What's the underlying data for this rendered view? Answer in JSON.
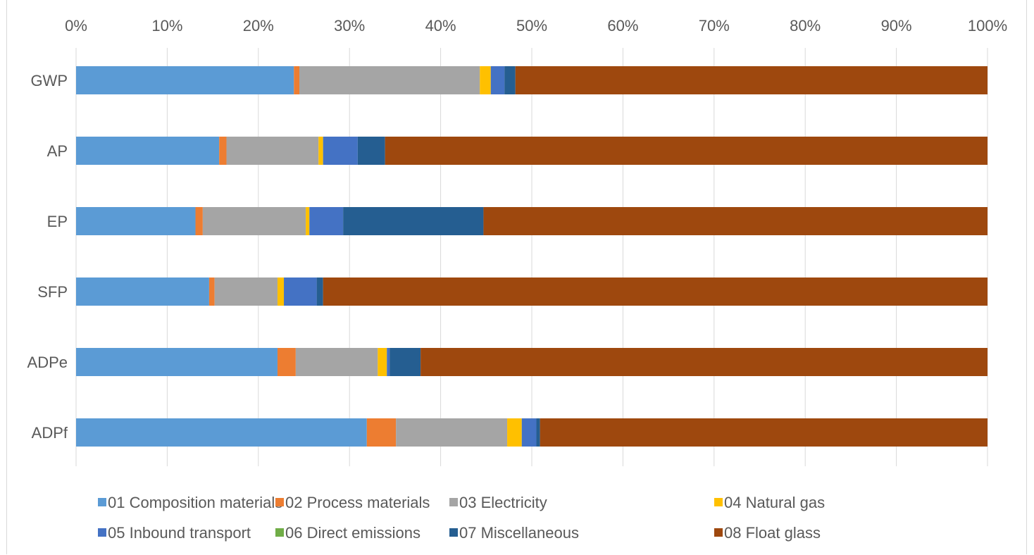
{
  "chart_data": {
    "type": "bar",
    "orientation": "horizontal",
    "stacked": "percent",
    "title": "",
    "xlabel": "",
    "ylabel": "",
    "xlim": [
      0,
      100
    ],
    "x_ticks": [
      "0%",
      "10%",
      "20%",
      "30%",
      "40%",
      "50%",
      "60%",
      "70%",
      "80%",
      "90%",
      "100%"
    ],
    "x_axis_position": "top",
    "grid": true,
    "legend_position": "bottom",
    "categories": [
      "GWP",
      "AP",
      "EP",
      "SFP",
      "ADPe",
      "ADPf"
    ],
    "series": [
      {
        "name": "01 Composition materials",
        "color": "#5b9bd5",
        "values": [
          23.9,
          15.7,
          13.1,
          14.6,
          22.1,
          31.9
        ]
      },
      {
        "name": "02 Process materials",
        "color": "#ed7d31",
        "values": [
          0.6,
          0.8,
          0.8,
          0.6,
          2.0,
          3.2
        ]
      },
      {
        "name": "03 Electricity",
        "color": "#a5a5a5",
        "values": [
          19.8,
          10.1,
          11.3,
          6.9,
          9.0,
          12.2
        ]
      },
      {
        "name": "04 Natural gas",
        "color": "#ffc000",
        "values": [
          1.2,
          0.5,
          0.4,
          0.7,
          1.0,
          1.6
        ]
      },
      {
        "name": "05 Inbound transport",
        "color": "#4472c4",
        "values": [
          1.5,
          3.8,
          3.7,
          3.6,
          0.3,
          1.6
        ]
      },
      {
        "name": "06 Direct emissions",
        "color": "#70ad47",
        "values": [
          0,
          0,
          0,
          0,
          0,
          0
        ]
      },
      {
        "name": "07 Miscellaneous",
        "color": "#255e91",
        "values": [
          1.2,
          3.0,
          15.4,
          0.7,
          3.4,
          0.4
        ]
      },
      {
        "name": "08 Float glass",
        "color": "#9e480e",
        "values": [
          51.8,
          66.1,
          55.3,
          72.9,
          62.2,
          49.1
        ]
      }
    ]
  }
}
